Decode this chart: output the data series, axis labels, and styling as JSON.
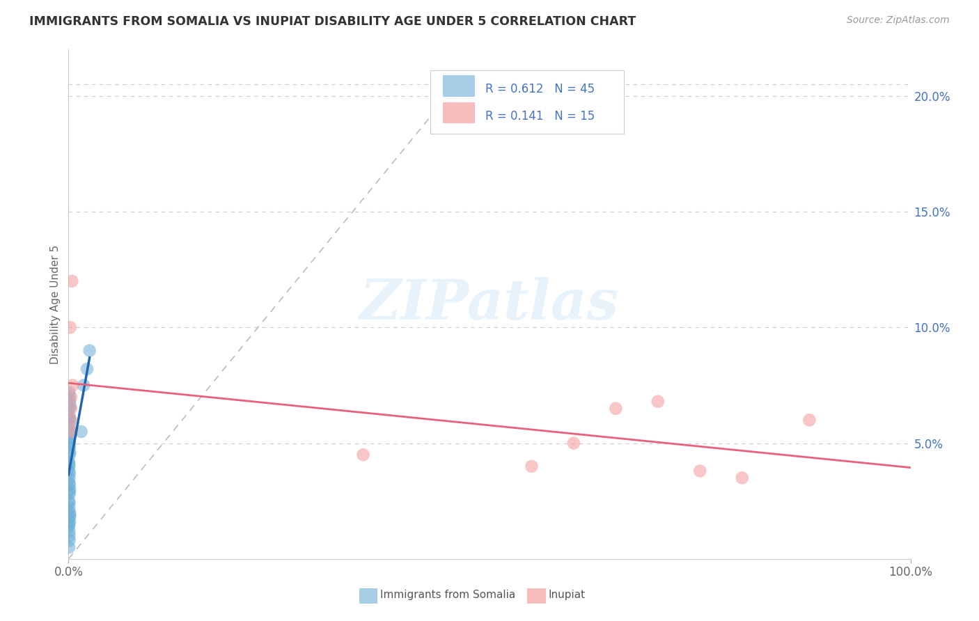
{
  "title": "IMMIGRANTS FROM SOMALIA VS INUPIAT DISABILITY AGE UNDER 5 CORRELATION CHART",
  "source": "Source: ZipAtlas.com",
  "ylabel": "Disability Age Under 5",
  "xlim": [
    0,
    1.0
  ],
  "ylim": [
    0,
    0.22
  ],
  "yticks_right": [
    0.05,
    0.1,
    0.15,
    0.2
  ],
  "ytick_right_labels": [
    "5.0%",
    "10.0%",
    "15.0%",
    "20.0%"
  ],
  "legend_R1": "0.612",
  "legend_N1": "45",
  "legend_R2": "0.141",
  "legend_N2": "15",
  "legend_label1": "Immigrants from Somalia",
  "legend_label2": "Inupiat",
  "blue_color": "#6baed6",
  "pink_color": "#f4a0a0",
  "blue_line_color": "#2166ac",
  "pink_line_color": "#e8607a",
  "watermark_text": "ZIPatlas",
  "background_color": "#ffffff",
  "grid_color": "#cccccc",
  "blue_scatter_x": [
    0.0005,
    0.001,
    0.0008,
    0.0012,
    0.0006,
    0.0015,
    0.0009,
    0.0007,
    0.0011,
    0.0013,
    0.0004,
    0.0016,
    0.0008,
    0.001,
    0.0014,
    0.0006,
    0.0009,
    0.0007,
    0.0012,
    0.0005,
    0.0003,
    0.0011,
    0.0008,
    0.001,
    0.0006,
    0.0014,
    0.0009,
    0.0007,
    0.0013,
    0.0004,
    0.0016,
    0.0008,
    0.001,
    0.0005,
    0.0012,
    0.0006,
    0.0015,
    0.0009,
    0.0007,
    0.0011,
    0.002,
    0.025,
    0.018,
    0.022,
    0.015
  ],
  "blue_scatter_y": [
    0.005,
    0.008,
    0.012,
    0.018,
    0.025,
    0.03,
    0.035,
    0.04,
    0.045,
    0.05,
    0.055,
    0.06,
    0.065,
    0.028,
    0.02,
    0.015,
    0.01,
    0.022,
    0.032,
    0.038,
    0.042,
    0.048,
    0.052,
    0.058,
    0.062,
    0.068,
    0.07,
    0.072,
    0.016,
    0.014,
    0.019,
    0.024,
    0.029,
    0.033,
    0.037,
    0.041,
    0.046,
    0.051,
    0.056,
    0.061,
    0.066,
    0.09,
    0.075,
    0.082,
    0.055
  ],
  "pink_scatter_x": [
    0.002,
    0.004,
    0.003,
    0.005,
    0.003,
    0.004,
    0.003,
    0.35,
    0.55,
    0.65,
    0.75,
    0.88,
    0.6,
    0.7,
    0.8
  ],
  "pink_scatter_y": [
    0.1,
    0.12,
    0.065,
    0.075,
    0.06,
    0.055,
    0.07,
    0.045,
    0.04,
    0.065,
    0.038,
    0.06,
    0.05,
    0.068,
    0.035
  ]
}
